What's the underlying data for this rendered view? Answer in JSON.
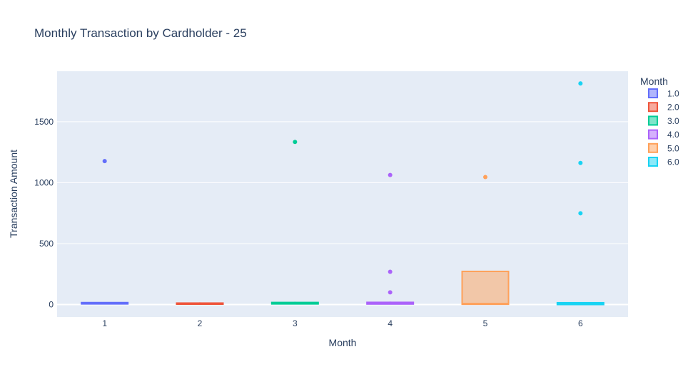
{
  "chart_data": {
    "type": "box",
    "title": "Monthly Transaction by Cardholder - 25",
    "xlabel": "Month",
    "ylabel": "Transaction Amount",
    "ylim": [
      -90,
      1900
    ],
    "y_ticks": [
      0,
      500,
      1000,
      1500
    ],
    "x_ticks": [
      "1",
      "2",
      "3",
      "4",
      "5",
      "6"
    ],
    "grid": true,
    "legend": {
      "title": "Month",
      "placement": "right",
      "entries": [
        "1.0",
        "2.0",
        "3.0",
        "4.0",
        "5.0",
        "6.0"
      ]
    },
    "series": [
      {
        "name": "1.0",
        "x": 1,
        "color": "#636efa",
        "q1": 5,
        "median": 10,
        "q3": 16,
        "lower_whisker": 1,
        "upper_whisker": 20,
        "outliers": [
          1177
        ]
      },
      {
        "name": "2.0",
        "x": 2,
        "color": "#EF553B",
        "q1": 3,
        "median": 8,
        "q3": 12,
        "lower_whisker": 1,
        "upper_whisker": 18,
        "outliers": []
      },
      {
        "name": "3.0",
        "x": 3,
        "color": "#00cc96",
        "q1": 5,
        "median": 10,
        "q3": 17,
        "lower_whisker": 1,
        "upper_whisker": 22,
        "outliers": [
          1334
        ]
      },
      {
        "name": "4.0",
        "x": 4,
        "color": "#ab63fa",
        "q1": 4,
        "median": 10,
        "q3": 18,
        "lower_whisker": 1,
        "upper_whisker": 24,
        "outliers": [
          1063,
          269,
          100
        ]
      },
      {
        "name": "5.0",
        "x": 5,
        "color": "#FFA15A",
        "q1": 2,
        "median": 8,
        "q3": 272,
        "lower_whisker": 1,
        "upper_whisker": 272,
        "outliers": [
          1046
        ]
      },
      {
        "name": "6.0",
        "x": 6,
        "color": "#19d3f3",
        "q1": 0,
        "median": 10,
        "q3": 15,
        "lower_whisker": 0,
        "upper_whisker": 20,
        "outliers": [
          1814,
          1162,
          749
        ]
      }
    ]
  }
}
